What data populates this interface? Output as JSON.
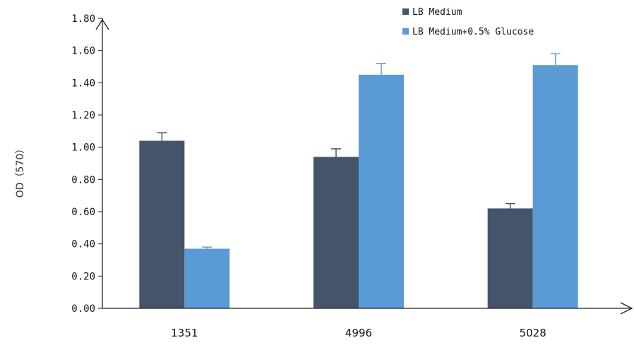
{
  "chart_data": {
    "type": "bar",
    "categories": [
      "1351",
      "4996",
      "5028"
    ],
    "series": [
      {
        "name": "LB Medium",
        "values": [
          1.04,
          0.94,
          0.62
        ],
        "errors": [
          0.05,
          0.05,
          0.03
        ],
        "color": "#44546a"
      },
      {
        "name": "LB Medium+0.5% Glucose",
        "values": [
          0.37,
          1.45,
          1.51
        ],
        "errors": [
          0.01,
          0.07,
          0.07
        ],
        "color": "#5b9bd5"
      }
    ],
    "yticks": [
      "0.00",
      "0.20",
      "0.40",
      "0.60",
      "0.80",
      "1.00",
      "1.20",
      "1.40",
      "1.60",
      "1.80"
    ],
    "ylabel": "OD（570）",
    "xlabel": "",
    "ylim": [
      0,
      1.8
    ],
    "legend": "top-right",
    "grid": false
  }
}
